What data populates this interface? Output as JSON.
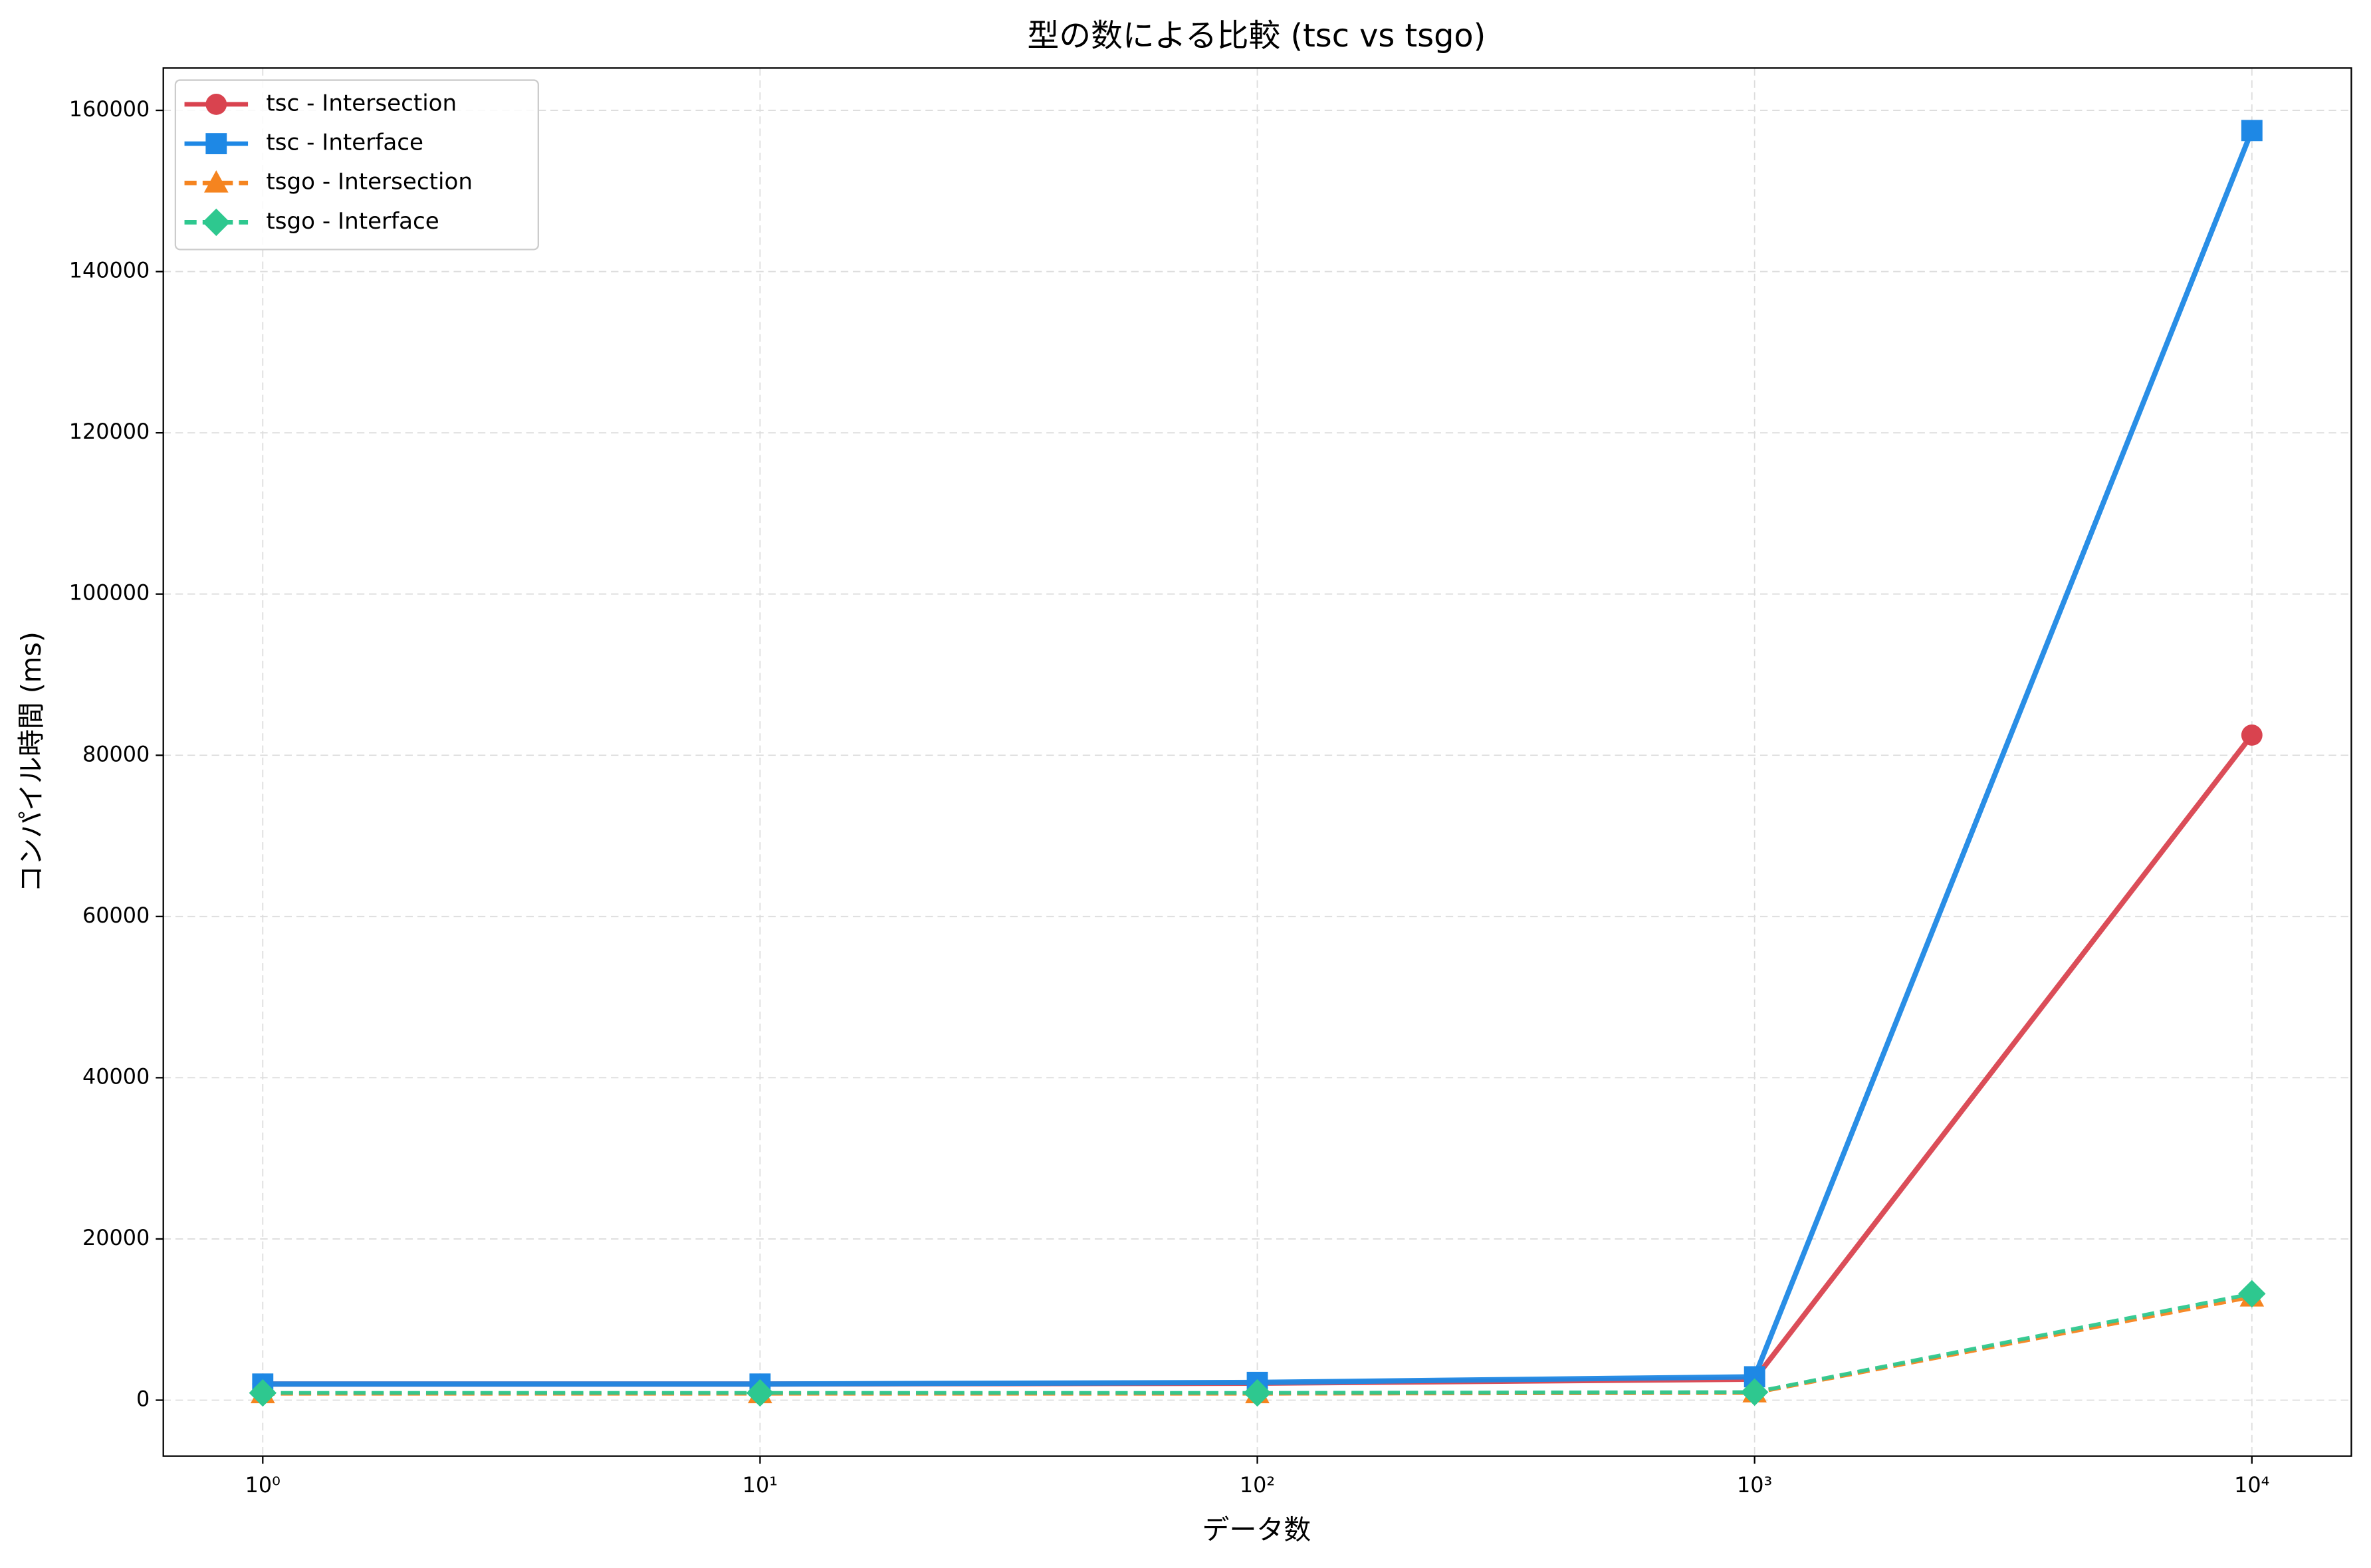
{
  "chart_data": {
    "type": "line",
    "title": "型の数による比較 (tsc vs tsgo)",
    "x_label": "データ数",
    "y_label": "コンパイル時間 (ms)",
    "x": [
      1,
      10,
      100,
      1000,
      10000
    ],
    "x_scale": "log",
    "xlim": [
      0.631,
      15849
    ],
    "xticks": [
      {
        "value": 1,
        "label": "10⁰"
      },
      {
        "value": 10,
        "label": "10¹"
      },
      {
        "value": 100,
        "label": "10²"
      },
      {
        "value": 1000,
        "label": "10³"
      },
      {
        "value": 10000,
        "label": "10⁴"
      }
    ],
    "ylim": [
      -6940,
      165250
    ],
    "yticks": [
      0,
      20000,
      40000,
      60000,
      80000,
      100000,
      120000,
      140000,
      160000
    ],
    "grid": true,
    "legend": "upper left",
    "series": [
      {
        "name": "tsc - Intersection",
        "color": "#d9434f",
        "marker": "circle",
        "linestyle": "solid",
        "values": [
          2000,
          2000,
          2100,
          2600,
          82500
        ]
      },
      {
        "name": "tsc - Interface",
        "color": "#1e88e5",
        "marker": "square",
        "linestyle": "solid",
        "values": [
          2000,
          2000,
          2200,
          2900,
          157500
        ]
      },
      {
        "name": "tsgo - Intersection",
        "color": "#f5841f",
        "marker": "triangle",
        "linestyle": "dashed",
        "values": [
          800,
          800,
          800,
          900,
          12800
        ]
      },
      {
        "name": "tsgo - Interface",
        "color": "#2ec88f",
        "marker": "diamond",
        "linestyle": "dashed",
        "values": [
          900,
          900,
          900,
          1000,
          13200
        ]
      }
    ]
  }
}
